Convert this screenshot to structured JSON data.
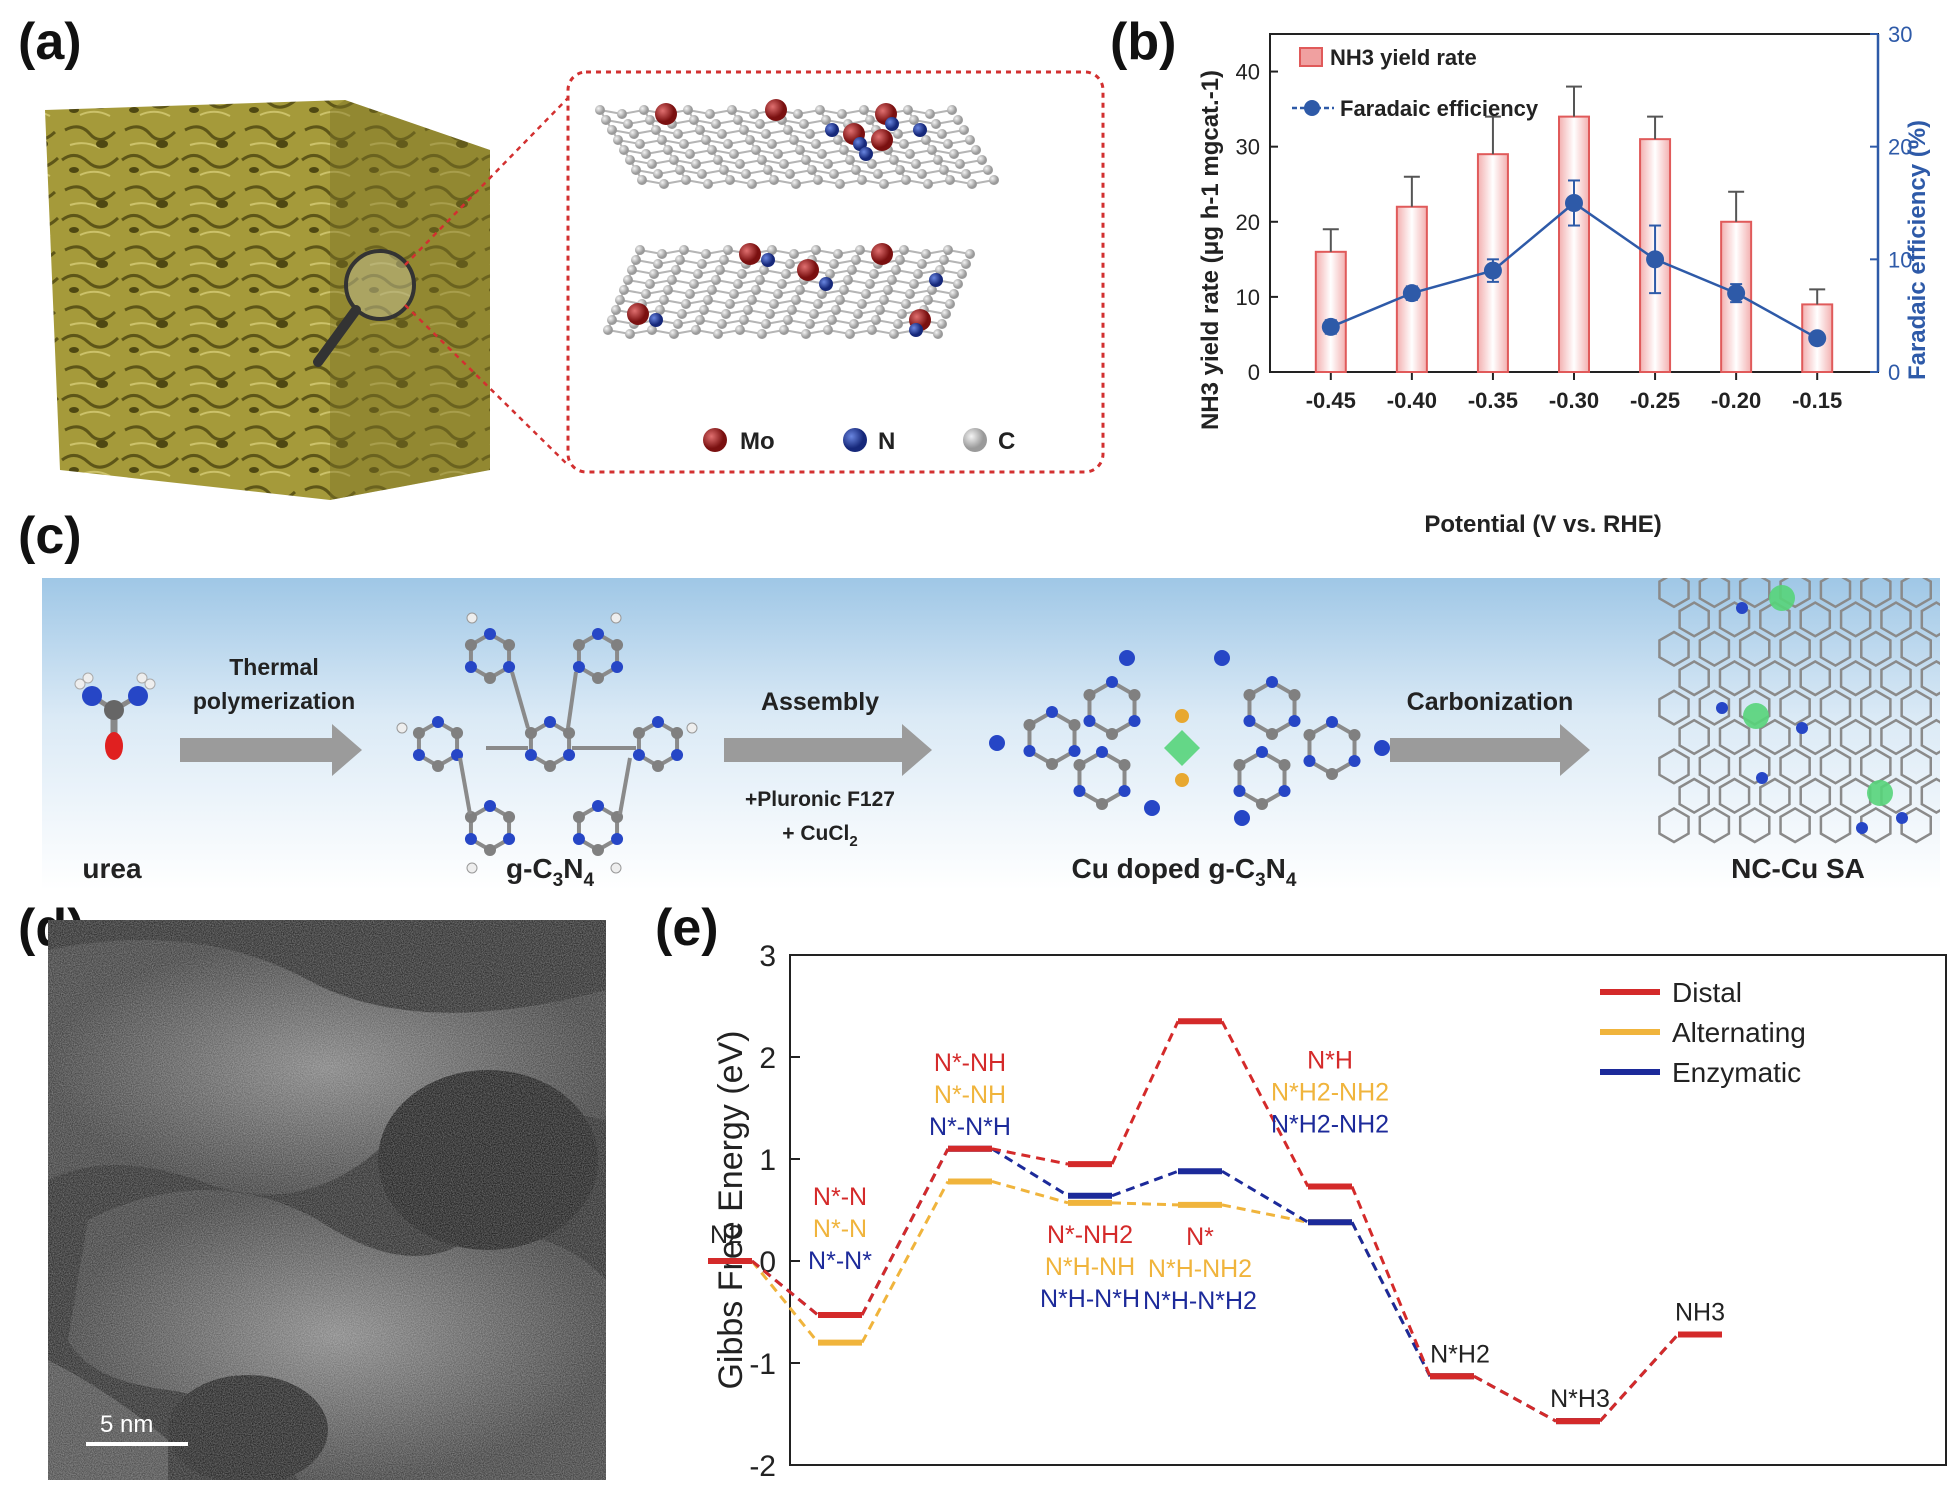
{
  "panels": {
    "a": {
      "label": "(a)",
      "legend": [
        {
          "name": "Mo",
          "color": "#9b1b1b"
        },
        {
          "name": "N",
          "color": "#1f3a9e"
        },
        {
          "name": "C",
          "color": "#c8c8c8"
        }
      ]
    },
    "b": {
      "label": "(b)"
    },
    "c": {
      "label": "(c)"
    },
    "d": {
      "label": "(d)",
      "scale_bar": "5 nm"
    },
    "e": {
      "label": "(e)"
    }
  },
  "scheme": {
    "steps": [
      "urea",
      "g-C3N4",
      "Cu doped g-C3N4",
      "NC-Cu SA"
    ],
    "arrows": [
      {
        "top": "Thermal",
        "top2": "polymerization",
        "bottom": "",
        "bottom2": ""
      },
      {
        "top": "Assembly",
        "top2": "",
        "bottom": "+Pluronic F127",
        "bottom2": "+ CuCl2"
      },
      {
        "top": "Carbonization",
        "top2": "",
        "bottom": "",
        "bottom2": ""
      }
    ]
  },
  "chart_data": [
    {
      "type": "bar",
      "panel": "b",
      "xlabel": "Potential (V vs. RHE)",
      "ylabel": "NH3 yield rate (μg h-1 mgcat.-1)",
      "ylabel2": "Faradaic efficiency (%)",
      "categories": [
        "-0.45",
        "-0.40",
        "-0.35",
        "-0.30",
        "-0.25",
        "-0.20",
        "-0.15"
      ],
      "ylim": [
        0,
        45
      ],
      "y2lim": [
        0,
        30
      ],
      "yticks": [
        "0",
        "10",
        "20",
        "30",
        "40"
      ],
      "y2ticks": [
        "0",
        "10",
        "20",
        "30"
      ],
      "series": [
        {
          "name": "NH3 yield rate",
          "kind": "bar",
          "color": "#e05a5a",
          "values": [
            16,
            22,
            29,
            34,
            31,
            20,
            9
          ],
          "errors": [
            3,
            4,
            5,
            4,
            3,
            4,
            2
          ]
        },
        {
          "name": "Faradaic efficiency",
          "kind": "line",
          "axis": "right",
          "color": "#2e5aa8",
          "values": [
            4,
            7,
            9,
            15,
            10,
            7,
            3
          ],
          "errors": [
            0.6,
            0.6,
            1.0,
            2.0,
            3.0,
            0.8,
            0.4
          ]
        }
      ],
      "legend": [
        "NH3 yield rate",
        "Faradaic efficiency"
      ]
    },
    {
      "type": "line",
      "panel": "e",
      "ylabel": "Gibbs Free Energy (eV)",
      "ylim": [
        -2,
        3
      ],
      "yticks": [
        "-2",
        "-1",
        "0",
        "1",
        "2",
        "3"
      ],
      "legend": [
        "Distal",
        "Alternating",
        "Enzymatic"
      ],
      "series": [
        {
          "name": "Distal",
          "color": "#d42a2a",
          "levels": [
            0,
            -0.53,
            1.1,
            0.95,
            2.35,
            0.73,
            -1.13,
            -1.57,
            -0.72
          ]
        },
        {
          "name": "Alternating",
          "color": "#f0b43c",
          "levels": [
            0,
            -0.8,
            0.78,
            0.57,
            0.55,
            0.38,
            -1.13,
            -1.57,
            -0.72
          ]
        },
        {
          "name": "Enzymatic",
          "color": "#1c2a9a",
          "levels": [
            0,
            -0.53,
            1.1,
            0.64,
            0.88,
            0.38,
            -1.13,
            -1.57,
            -0.72
          ]
        }
      ],
      "annotations": {
        "n2": "N2",
        "s1": [
          "N*-N",
          "N*-N",
          "N*-N*"
        ],
        "s2": [
          "N*-NH",
          "N*-NH",
          "N*-N*H"
        ],
        "s3": [
          "N*-NH2",
          "N*H-NH",
          "N*H-N*H"
        ],
        "s4": [
          "N*",
          "N*H-NH2",
          "N*H-N*H2"
        ],
        "s5": [
          "N*H",
          "N*H2-NH2",
          "N*H2-NH2"
        ],
        "s6": "N*H2",
        "s7": "N*H3",
        "nh3": "NH3"
      }
    }
  ]
}
